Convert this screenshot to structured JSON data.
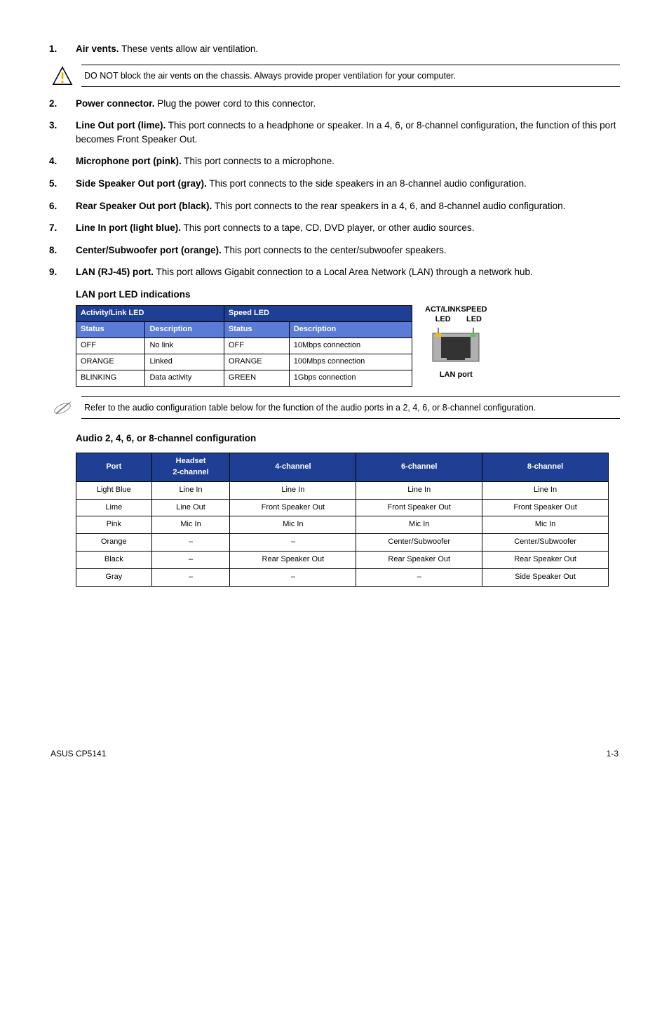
{
  "items": [
    {
      "num": "1.",
      "title": "Air vents.",
      "desc": " These vents allow air ventilation."
    },
    {
      "num": "2.",
      "title": "Power connector.",
      "desc": " Plug the power cord to this connector."
    },
    {
      "num": "3.",
      "title": "Line Out port (lime).",
      "desc": " This port connects to a headphone or speaker. In a 4, 6, or 8-channel configuration, the function of this port becomes Front Speaker Out."
    },
    {
      "num": "4.",
      "title": "Microphone port (pink).",
      "desc": " This port connects to a microphone."
    },
    {
      "num": "5.",
      "title": "Side Speaker Out port (gray).",
      "desc": " This port connects to the side speakers in an 8-channel audio configuration."
    },
    {
      "num": "6.",
      "title": "Rear Speaker Out port (black).",
      "desc": " This port connects to the rear speakers in a 4, 6, and 8-channel audio configuration."
    },
    {
      "num": "7.",
      "title": "Line In port (light blue).",
      "desc": " This port connects to a tape, CD, DVD player, or other audio sources."
    },
    {
      "num": "8.",
      "title": "Center/Subwoofer port (orange).",
      "desc": " This port connects to the center/subwoofer speakers."
    },
    {
      "num": "9.",
      "title": "LAN (RJ-45) port.",
      "desc": " This port allows Gigabit connection to a Local Area Network (LAN) through a network hub."
    }
  ],
  "callout_warning": "DO NOT block the air vents on the chassis. Always provide proper ventilation for your computer.",
  "callout_note": "Refer to the audio configuration table below for the function of the audio ports in a 2, 4, 6, or 8-channel configuration.",
  "lan_heading": "LAN port LED indications",
  "lan_table": {
    "header1": [
      "Activity/Link LED",
      "Speed LED"
    ],
    "header2": [
      "Status",
      "Description",
      "Status",
      "Description"
    ],
    "rows": [
      [
        "OFF",
        "No link",
        "OFF",
        "10Mbps connection"
      ],
      [
        "ORANGE",
        "Linked",
        "ORANGE",
        "100Mbps connection"
      ],
      [
        "BLINKING",
        "Data activity",
        "GREEN",
        "1Gbps connection"
      ]
    ]
  },
  "lan_fig": {
    "left_top": "ACT/LINK",
    "left_bot": "LED",
    "right_top": "SPEED",
    "right_bot": "LED",
    "caption": "LAN port"
  },
  "audio_heading": "Audio 2, 4, 6, or 8-channel configuration",
  "audio_table": {
    "headers": [
      "Port",
      "Headset 2-channel",
      "4-channel",
      "6-channel",
      "8-channel"
    ],
    "rows": [
      [
        "Light Blue",
        "Line In",
        "Line In",
        "Line In",
        "Line In"
      ],
      [
        "Lime",
        "Line Out",
        "Front Speaker Out",
        "Front Speaker Out",
        "Front Speaker Out"
      ],
      [
        "Pink",
        "Mic In",
        "Mic In",
        "Mic In",
        "Mic In"
      ],
      [
        "Orange",
        "–",
        "–",
        "Center/Subwoofer",
        "Center/Subwoofer"
      ],
      [
        "Black",
        "–",
        "Rear Speaker Out",
        "Rear Speaker Out",
        "Rear Speaker Out"
      ],
      [
        "Gray",
        "–",
        "–",
        "–",
        "Side Speaker Out"
      ]
    ]
  },
  "footer_left": "ASUS CP5141",
  "footer_right": "1-3",
  "colors": {
    "header1_bg": "#1f3f94",
    "header2_bg": "#5a7bd6",
    "header_fg": "#ffffff",
    "border": "#000000"
  }
}
